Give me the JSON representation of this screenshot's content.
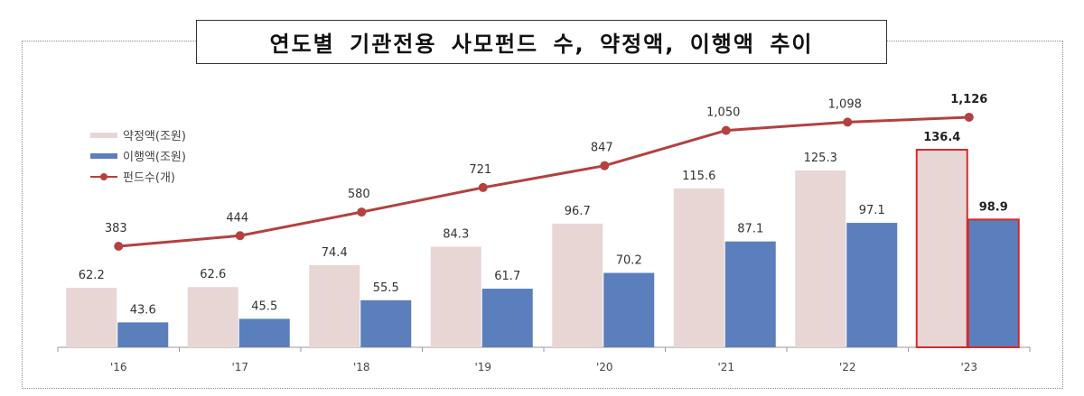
{
  "title": "연도별 기관전용 사모펀드 수, 약정액, 이행액 추이",
  "legend": {
    "commitment": "약정액(조원)",
    "executed": "이행액(조원)",
    "funds": "펀드수(개)"
  },
  "colors": {
    "commitment": "#e8d6d5",
    "executed": "#5b7fbd",
    "funds_line": "#b4403f",
    "highlight": "#d62a2a"
  },
  "chart_data": {
    "type": "bar",
    "title": "연도별 기관전용 사모펀드 수, 약정액, 이행액 추이",
    "categories": [
      "'16",
      "'17",
      "'18",
      "'19",
      "'20",
      "'21",
      "'22",
      "'23"
    ],
    "series": [
      {
        "name": "약정액(조원)",
        "type": "bar",
        "values": [
          62.2,
          62.6,
          74.4,
          84.3,
          96.7,
          115.6,
          125.3,
          136.4
        ]
      },
      {
        "name": "이행액(조원)",
        "type": "bar",
        "values": [
          43.6,
          45.5,
          55.5,
          61.7,
          70.2,
          87.1,
          97.1,
          98.9
        ]
      },
      {
        "name": "펀드수(개)",
        "type": "line",
        "values": [
          383,
          444,
          580,
          721,
          847,
          1050,
          1098,
          1126
        ],
        "labels": [
          "383",
          "444",
          "580",
          "721",
          "847",
          "1,050",
          "1,098",
          "1,126"
        ]
      }
    ],
    "highlighted_category": "'23",
    "xlabel": "",
    "ylabel": "",
    "grid": false,
    "legend_position": "upper-left"
  }
}
